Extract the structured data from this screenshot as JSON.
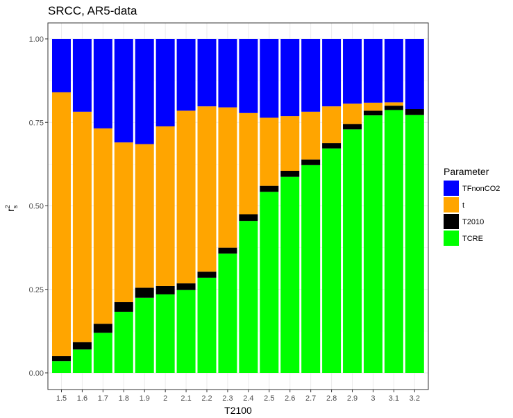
{
  "chart_data": {
    "type": "bar",
    "stacked": true,
    "title": "SRCC, AR5-data",
    "xlabel": "T2100",
    "ylabel": "r",
    "ylabel_superscript": "2",
    "ylabel_subscript": "s",
    "ylim": [
      0,
      1
    ],
    "yticks": [
      "0.00",
      "0.25",
      "0.50",
      "0.75",
      "1.00"
    ],
    "ytick_values": [
      0,
      0.25,
      0.5,
      0.75,
      1.0
    ],
    "categories": [
      "1.5",
      "1.6",
      "1.7",
      "1.8",
      "1.9",
      "2",
      "2.1",
      "2.2",
      "2.3",
      "2.4",
      "2.5",
      "2.6",
      "2.7",
      "2.8",
      "2.9",
      "3",
      "3.1",
      "3.2"
    ],
    "grid": true,
    "legend_position": "right",
    "legend_title": "Parameter",
    "legend_order": [
      "TFnonCO2",
      "t",
      "T2010",
      "TCRE"
    ],
    "series": [
      {
        "name": "TCRE",
        "color": "#00ff00",
        "values": [
          0.035,
          0.07,
          0.12,
          0.183,
          0.225,
          0.235,
          0.248,
          0.285,
          0.357,
          0.455,
          0.542,
          0.587,
          0.622,
          0.672,
          0.729,
          0.771,
          0.787,
          0.772
        ]
      },
      {
        "name": "T2010",
        "color": "#000000",
        "values": [
          0.015,
          0.022,
          0.027,
          0.029,
          0.03,
          0.025,
          0.02,
          0.018,
          0.018,
          0.02,
          0.018,
          0.018,
          0.017,
          0.016,
          0.016,
          0.014,
          0.013,
          0.018
        ]
      },
      {
        "name": "t",
        "color": "#ffa500",
        "values": [
          0.79,
          0.69,
          0.585,
          0.478,
          0.43,
          0.478,
          0.517,
          0.495,
          0.42,
          0.303,
          0.204,
          0.164,
          0.143,
          0.11,
          0.061,
          0.024,
          0.01,
          0.0
        ]
      },
      {
        "name": "TFnonCO2",
        "color": "#0000ff",
        "values": [
          0.16,
          0.218,
          0.268,
          0.31,
          0.315,
          0.262,
          0.215,
          0.202,
          0.205,
          0.222,
          0.236,
          0.231,
          0.218,
          0.202,
          0.194,
          0.191,
          0.19,
          0.21
        ]
      }
    ]
  }
}
